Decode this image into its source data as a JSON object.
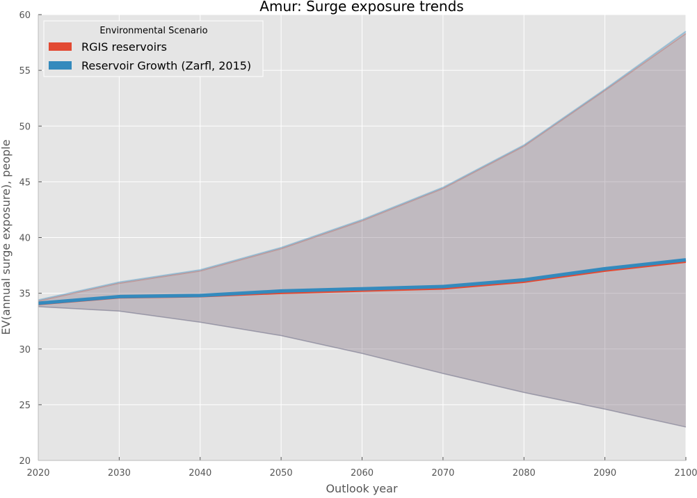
{
  "chart_data": {
    "type": "line",
    "title": "Amur: Surge exposure trends",
    "xlabel": "Outlook year",
    "ylabel": "EV(annual surge exposure), people",
    "xlim": [
      2020,
      2100
    ],
    "ylim": [
      20,
      60
    ],
    "xticks": [
      2020,
      2030,
      2040,
      2050,
      2060,
      2070,
      2080,
      2090,
      2100
    ],
    "yticks": [
      20,
      25,
      30,
      35,
      40,
      45,
      50,
      55,
      60
    ],
    "grid": true,
    "background": "#e5e5e5",
    "legend": {
      "title": "Environmental Scenario",
      "location": "top-left"
    },
    "x": [
      2020,
      2030,
      2040,
      2050,
      2060,
      2070,
      2080,
      2090,
      2100
    ],
    "series": [
      {
        "name": "RGIS reservoirs",
        "color": "#e24a33",
        "values": [
          34.0,
          34.6,
          34.7,
          35.0,
          35.2,
          35.4,
          36.0,
          37.0,
          37.8
        ],
        "band_lower": [
          33.8,
          33.4,
          32.4,
          31.2,
          29.6,
          27.8,
          26.1,
          24.6,
          23.0
        ],
        "band_upper": [
          34.3,
          35.9,
          37.0,
          39.0,
          41.5,
          44.4,
          48.2,
          53.2,
          58.3
        ]
      },
      {
        "name": "Reservoir Growth (Zarfl, 2015)",
        "color": "#348abd",
        "values": [
          34.1,
          34.7,
          34.8,
          35.2,
          35.4,
          35.6,
          36.2,
          37.2,
          38.0
        ],
        "band_lower": [
          33.8,
          33.4,
          32.4,
          31.2,
          29.6,
          27.8,
          26.1,
          24.6,
          23.0
        ],
        "band_upper": [
          34.4,
          36.0,
          37.1,
          39.1,
          41.6,
          44.5,
          48.3,
          53.3,
          58.5
        ]
      }
    ]
  }
}
